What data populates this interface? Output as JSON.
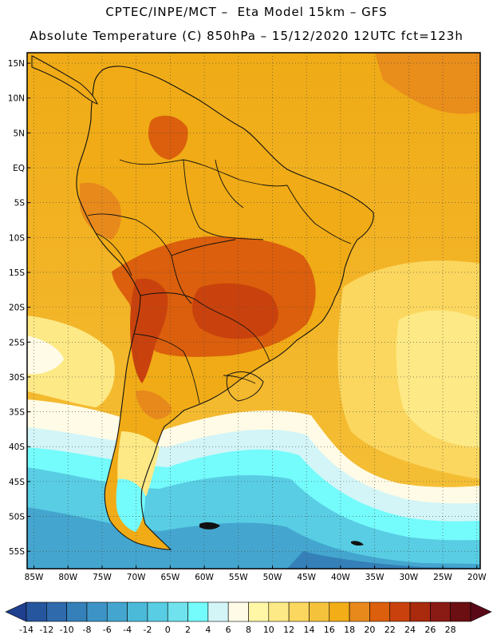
{
  "header": {
    "line1": "CPTEC/INPE/MCT –  Eta Model 15km – GFS",
    "line2": "Absolute Temperature (C) 850hPa – 15/12/2020 12UTC fct=123h"
  },
  "map": {
    "region": "South America",
    "variable": "Absolute Temperature (C)",
    "level": "850hPa",
    "lat_labels": [
      "15N",
      "10N",
      "5N",
      "EQ",
      "5S",
      "10S",
      "15S",
      "20S",
      "25S",
      "30S",
      "35S",
      "40S",
      "45S",
      "50S",
      "55S"
    ],
    "lat_values": [
      15,
      10,
      5,
      0,
      -5,
      -10,
      -15,
      -20,
      -25,
      -30,
      -35,
      -40,
      -45,
      -50,
      -55
    ],
    "lon_labels": [
      "85W",
      "80W",
      "75W",
      "70W",
      "65W",
      "60W",
      "55W",
      "50W",
      "45W",
      "40W",
      "35W",
      "30W",
      "25W",
      "20W"
    ],
    "lon_values": [
      -85,
      -80,
      -75,
      -70,
      -65,
      -60,
      -55,
      -50,
      -45,
      -40,
      -35,
      -30,
      -25,
      -20
    ],
    "extent": {
      "lon_min": -86,
      "lon_max": -19.5,
      "lat_min": -57.5,
      "lat_max": 16.5
    },
    "grid": "dotted, every 5 degrees"
  },
  "colorbar": {
    "labels": [
      "-14",
      "-12",
      "-10",
      "-8",
      "-6",
      "-4",
      "-2",
      "0",
      "2",
      "4",
      "6",
      "8",
      "10",
      "12",
      "14",
      "16",
      "18",
      "20",
      "22",
      "24",
      "26",
      "28"
    ],
    "colors": [
      "#1f3f8f",
      "#26569e",
      "#2f6aad",
      "#3580b8",
      "#3d93c5",
      "#44a6cf",
      "#4bbad9",
      "#58cde4",
      "#6fe2ee",
      "#74fbfb",
      "#d3f5f7",
      "#fffbe6",
      "#fff6a6",
      "#fde985",
      "#fbd75f",
      "#f5c33b",
      "#f2ad17",
      "#e8891c",
      "#db5f0c",
      "#c9420d",
      "#a92a0d",
      "#8a1a14",
      "#6b0f12",
      "#5a0818"
    ]
  }
}
